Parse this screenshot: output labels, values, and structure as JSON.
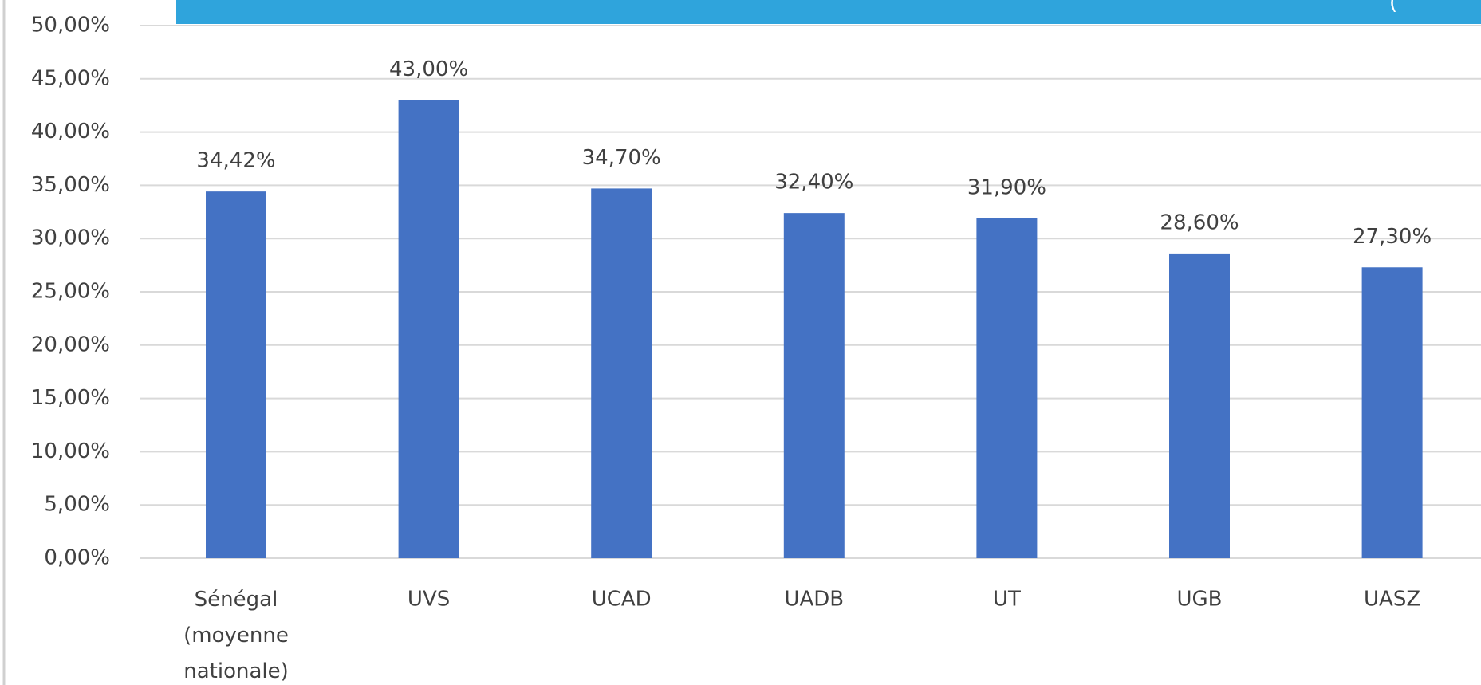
{
  "header": {
    "text": "("
  },
  "chart_data": {
    "type": "bar",
    "categories": [
      "Sénégal (moyenne nationale)",
      "UVS",
      "UCAD",
      "UADB",
      "UT",
      "UGB",
      "UASZ"
    ],
    "values": [
      34.42,
      43.0,
      34.7,
      32.4,
      31.9,
      28.6,
      27.3
    ],
    "value_labels": [
      "34,42%",
      "43,00%",
      "34,70%",
      "32,40%",
      "31,90%",
      "28,60%",
      "27,30%"
    ],
    "color": "#4472c4",
    "ylim": [
      0,
      50
    ],
    "yticks": [
      {
        "value": 0,
        "label": "0,00%"
      },
      {
        "value": 5,
        "label": "5,00%"
      },
      {
        "value": 10,
        "label": "10,00%"
      },
      {
        "value": 15,
        "label": "15,00%"
      },
      {
        "value": 20,
        "label": "20,00%"
      },
      {
        "value": 25,
        "label": "25,00%"
      },
      {
        "value": 30,
        "label": "30,00%"
      },
      {
        "value": 35,
        "label": "35,00%"
      },
      {
        "value": 40,
        "label": "40,00%"
      },
      {
        "value": 45,
        "label": "45,00%"
      },
      {
        "value": 50,
        "label": "50,00%"
      }
    ],
    "grid": true
  }
}
